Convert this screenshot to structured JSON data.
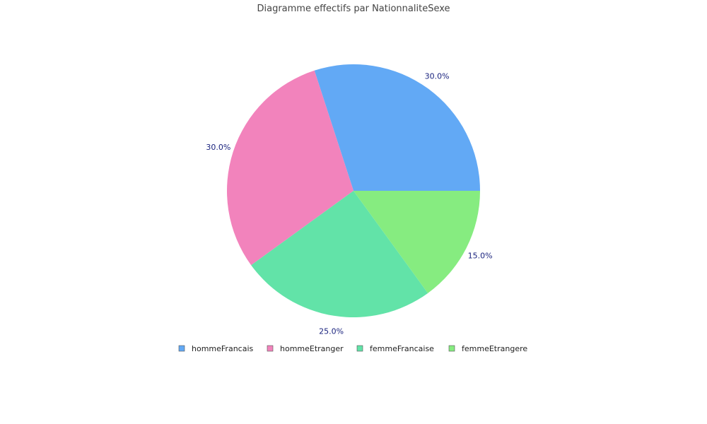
{
  "chart_data": {
    "type": "pie",
    "title": "Diagramme effectifs par NationnaliteSexe",
    "categories": [
      "hommeFrancais",
      "hommeEtranger",
      "femmeFrancaise",
      "femmeEtrangere"
    ],
    "values": [
      30.0,
      30.0,
      25.0,
      15.0
    ],
    "labels": [
      "30.0%",
      "30.0%",
      "25.0%",
      "15.0%"
    ],
    "colors": [
      "#62a9f5",
      "#f283bc",
      "#62e3a8",
      "#86ec80"
    ],
    "legend_position": "bottom"
  }
}
